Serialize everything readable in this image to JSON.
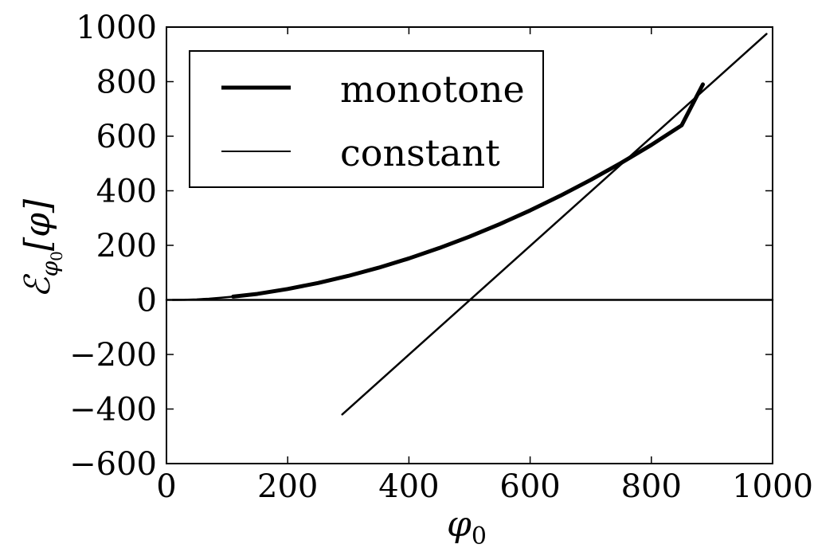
{
  "chart_data": {
    "type": "line",
    "title": "",
    "xlabel": {
      "base": "φ",
      "sub": "0"
    },
    "ylabel": {
      "base": "ℰ",
      "sub": "φ",
      "subsub": "0",
      "arg": "[φ]"
    },
    "xlim": [
      0,
      1000
    ],
    "ylim": [
      -600,
      1000
    ],
    "xticks": [
      0,
      200,
      400,
      600,
      800,
      1000
    ],
    "yticks": [
      1000,
      800,
      600,
      400,
      200,
      0,
      -200,
      -400,
      -600
    ],
    "xtick_labels": [
      "0",
      "200",
      "400",
      "600",
      "800",
      "1000"
    ],
    "ytick_labels": [
      "1000",
      "800",
      "600",
      "400",
      "200",
      "0",
      "−200",
      "−400",
      "−600"
    ],
    "grid": false,
    "legend_position": "top-left",
    "series": [
      {
        "name": "monotone",
        "style": "thick",
        "x": [
          110,
          150,
          200,
          250,
          300,
          350,
          400,
          450,
          500,
          550,
          600,
          650,
          700,
          750,
          800,
          850,
          885
        ],
        "y": [
          12,
          22,
          40,
          62,
          88,
          118,
          152,
          190,
          232,
          278,
          328,
          382,
          440,
          502,
          568,
          640,
          790
        ]
      },
      {
        "name": "constant",
        "style": "thin",
        "x": [
          290,
          990
        ],
        "y": [
          -420,
          975
        ]
      }
    ],
    "extra_lines": [
      {
        "role": "zero-curve",
        "x": [
          10,
          30,
          50,
          70,
          90,
          110
        ],
        "y": [
          0,
          0.5,
          2,
          4.5,
          8,
          12
        ]
      },
      {
        "role": "zero-line",
        "x": [
          0,
          1000
        ],
        "y": [
          0,
          0
        ]
      }
    ]
  }
}
